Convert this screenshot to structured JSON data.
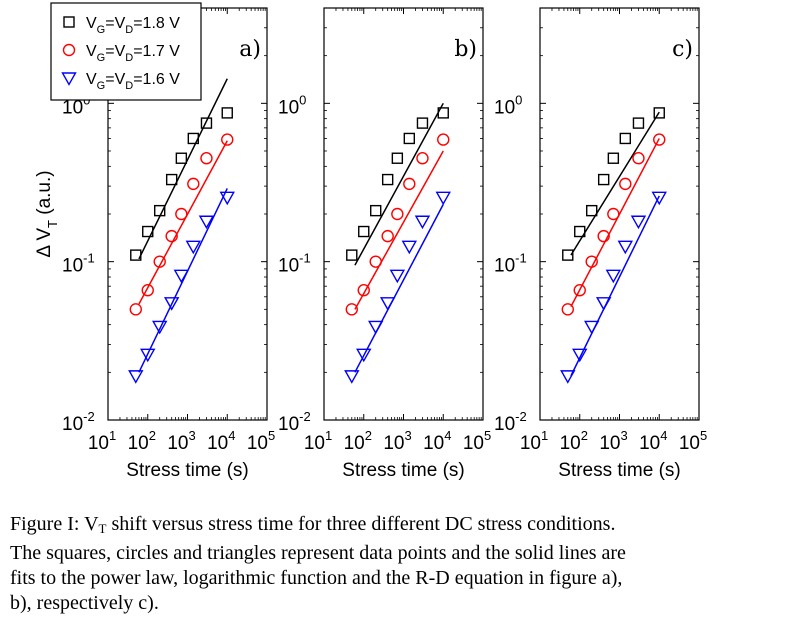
{
  "chart_data": [
    {
      "type": "scatter",
      "panel_label": "a)",
      "xscale": "log",
      "yscale": "log",
      "xlim": [
        10,
        100000
      ],
      "ylim": [
        0.01,
        4
      ],
      "xlabel": "Stress time (s)",
      "ylabel": "Δ V_T (a.u.)",
      "xticks": [
        10,
        100,
        1000,
        10000,
        100000
      ],
      "yticks": [
        0.01,
        0.1,
        1
      ],
      "fit": "power law",
      "series": [
        {
          "name": "V_G=V_D=1.8 V",
          "marker": "square",
          "color": "#000000",
          "x": [
            50,
            100,
            200,
            400,
            700,
            1400,
            3000,
            10000
          ],
          "y": [
            0.11,
            0.155,
            0.21,
            0.33,
            0.45,
            0.6,
            0.75,
            0.87
          ],
          "fit_x": [
            60,
            10000
          ],
          "fit_y": [
            0.104,
            1.43
          ]
        },
        {
          "name": "V_G=V_D=1.7 V",
          "marker": "circle",
          "color": "#ff0000",
          "x": [
            50,
            100,
            200,
            400,
            700,
            1400,
            3000,
            10000
          ],
          "y": [
            0.05,
            0.066,
            0.1,
            0.145,
            0.2,
            0.31,
            0.45,
            0.59
          ],
          "fit_x": [
            60,
            10000
          ],
          "fit_y": [
            0.054,
            0.58
          ]
        },
        {
          "name": "V_G=V_D=1.6 V",
          "marker": "triangle-down",
          "color": "#0000ff",
          "x": [
            50,
            100,
            200,
            400,
            700,
            1400,
            3000,
            10000
          ],
          "y": [
            0.019,
            0.026,
            0.039,
            0.055,
            0.082,
            0.125,
            0.18,
            0.255
          ],
          "fit_x": [
            60,
            10000
          ],
          "fit_y": [
            0.02,
            0.29
          ]
        }
      ]
    },
    {
      "type": "scatter",
      "panel_label": "b)",
      "xscale": "log",
      "yscale": "log",
      "xlim": [
        10,
        100000
      ],
      "ylim": [
        0.01,
        4
      ],
      "xlabel": "Stress time (s)",
      "xticks": [
        10,
        100,
        1000,
        10000,
        100000
      ],
      "yticks": [
        0.01,
        0.1,
        1
      ],
      "fit": "logarithmic function",
      "series": [
        {
          "name": "V_G=V_D=1.8 V",
          "marker": "square",
          "color": "#000000",
          "x": [
            50,
            100,
            200,
            400,
            700,
            1400,
            3000,
            10000
          ],
          "y": [
            0.11,
            0.155,
            0.21,
            0.33,
            0.45,
            0.6,
            0.75,
            0.87
          ],
          "fit_x": [
            60,
            10000
          ],
          "fit_y": [
            0.095,
            1.0
          ]
        },
        {
          "name": "V_G=V_D=1.7 V",
          "marker": "circle",
          "color": "#ff0000",
          "x": [
            50,
            100,
            200,
            400,
            700,
            1400,
            3000,
            10000
          ],
          "y": [
            0.05,
            0.066,
            0.1,
            0.145,
            0.2,
            0.31,
            0.45,
            0.59
          ],
          "fit_x": [
            60,
            10000
          ],
          "fit_y": [
            0.05,
            0.5
          ]
        },
        {
          "name": "V_G=V_D=1.6 V",
          "marker": "triangle-down",
          "color": "#0000ff",
          "x": [
            50,
            100,
            200,
            400,
            700,
            1400,
            3000,
            10000
          ],
          "y": [
            0.019,
            0.026,
            0.039,
            0.055,
            0.082,
            0.125,
            0.18,
            0.255
          ],
          "fit_x": [
            60,
            10000
          ],
          "fit_y": [
            0.02,
            0.23
          ]
        }
      ]
    },
    {
      "type": "scatter",
      "panel_label": "c)",
      "xscale": "log",
      "yscale": "log",
      "xlim": [
        10,
        100000
      ],
      "ylim": [
        0.01,
        4
      ],
      "xlabel": "Stress time (s)",
      "xticks": [
        10,
        100,
        1000,
        10000,
        100000
      ],
      "yticks": [
        0.01,
        0.1,
        1
      ],
      "fit": "R-D equation",
      "series": [
        {
          "name": "V_G=V_D=1.8 V",
          "marker": "square",
          "color": "#000000",
          "x": [
            50,
            100,
            200,
            400,
            700,
            1400,
            3000,
            10000
          ],
          "y": [
            0.11,
            0.155,
            0.21,
            0.33,
            0.45,
            0.6,
            0.75,
            0.87
          ],
          "fit_x": [
            60,
            10000
          ],
          "fit_y": [
            0.11,
            0.88
          ]
        },
        {
          "name": "V_G=V_D=1.7 V",
          "marker": "circle",
          "color": "#ff0000",
          "x": [
            50,
            100,
            200,
            400,
            700,
            1400,
            3000,
            10000
          ],
          "y": [
            0.05,
            0.066,
            0.1,
            0.145,
            0.2,
            0.31,
            0.45,
            0.59
          ],
          "fit_x": [
            60,
            10000
          ],
          "fit_y": [
            0.052,
            0.6
          ]
        },
        {
          "name": "V_G=V_D=1.6 V",
          "marker": "triangle-down",
          "color": "#0000ff",
          "x": [
            50,
            100,
            200,
            400,
            700,
            1400,
            3000,
            10000
          ],
          "y": [
            0.019,
            0.026,
            0.039,
            0.055,
            0.082,
            0.125,
            0.18,
            0.255
          ],
          "fit_x": [
            60,
            10000
          ],
          "fit_y": [
            0.019,
            0.26
          ]
        }
      ]
    }
  ],
  "legend": {
    "placement": "top-left of panel a",
    "entries": [
      {
        "marker": "square",
        "color": "#000000",
        "v": "V",
        "sub1": "G",
        "eq": "=V",
        "sub2": "D",
        "val": "=1.8 V"
      },
      {
        "marker": "circle",
        "color": "#ff0000",
        "v": "V",
        "sub1": "G",
        "eq": "=V",
        "sub2": "D",
        "val": "=1.7 V"
      },
      {
        "marker": "triangle-down",
        "color": "#0000ff",
        "v": "V",
        "sub1": "G",
        "eq": "=V",
        "sub2": "D",
        "val": "=1.6 V"
      }
    ]
  },
  "tick_text": {
    "base": "10",
    "xexp": [
      "1",
      "2",
      "3",
      "4",
      "5"
    ],
    "yexp": [
      "-2",
      "-1",
      "0"
    ]
  },
  "axis_text": {
    "xlabel": "Stress time (s)",
    "ylabel_delta": "Δ V",
    "ylabel_sub": "T",
    "ylabel_tail": " (a.u.)"
  },
  "caption": {
    "l1a": "Figure I: V",
    "l1sub": "T",
    "l1b": " shift versus stress time for three different DC stress conditions.",
    "l2": "The squares, circles and triangles represent data points and the solid lines are",
    "l3": "fits to the power law, logarithmic function and the R-D equation in figure a),",
    "l4": "b), respectively c)."
  }
}
